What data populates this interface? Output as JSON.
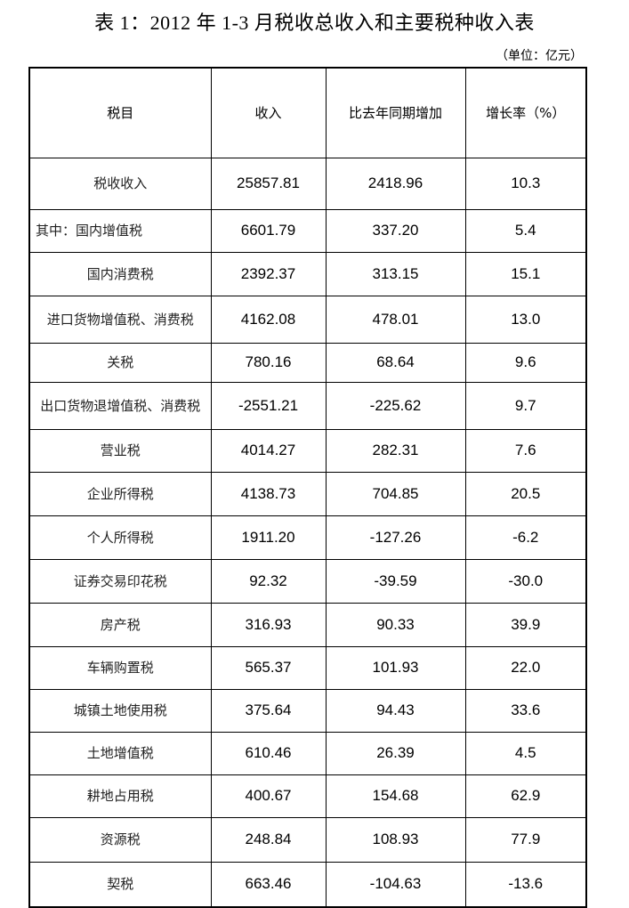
{
  "title": "表 1：2012 年 1-3 月税收总收入和主要税种收入表",
  "unit": "（单位：亿元）",
  "headers": [
    "税目",
    "收入",
    "比去年同期增加",
    "增长率（%）"
  ],
  "rows": [
    {
      "name": "税收收入",
      "income": "25857.81",
      "increase": "2418.96",
      "growth": "10.3"
    },
    {
      "name": "其中：国内增值税",
      "income": "6601.79",
      "increase": "337.20",
      "growth": "5.4"
    },
    {
      "name": "国内消费税",
      "income": "2392.37",
      "increase": "313.15",
      "growth": "15.1"
    },
    {
      "name": "进口货物增值税、消费税",
      "income": "4162.08",
      "increase": "478.01",
      "growth": "13.0"
    },
    {
      "name": "关税",
      "income": "780.16",
      "increase": "68.64",
      "growth": "9.6"
    },
    {
      "name": "出口货物退增值税、消费税",
      "income": "-2551.21",
      "increase": "-225.62",
      "growth": "9.7"
    },
    {
      "name": "营业税",
      "income": "4014.27",
      "increase": "282.31",
      "growth": "7.6"
    },
    {
      "name": "企业所得税",
      "income": "4138.73",
      "increase": "704.85",
      "growth": "20.5"
    },
    {
      "name": "个人所得税",
      "income": "1911.20",
      "increase": "-127.26",
      "growth": "-6.2"
    },
    {
      "name": "证券交易印花税",
      "income": "92.32",
      "increase": "-39.59",
      "growth": "-30.0"
    },
    {
      "name": "房产税",
      "income": "316.93",
      "increase": "90.33",
      "growth": "39.9"
    },
    {
      "name": "车辆购置税",
      "income": "565.37",
      "increase": "101.93",
      "growth": "22.0"
    },
    {
      "name": "城镇土地使用税",
      "income": "375.64",
      "increase": "94.43",
      "growth": "33.6"
    },
    {
      "name": "土地增值税",
      "income": "610.46",
      "increase": "26.39",
      "growth": "4.5"
    },
    {
      "name": "耕地占用税",
      "income": "400.67",
      "increase": "154.68",
      "growth": "62.9"
    },
    {
      "name": "资源税",
      "income": "248.84",
      "increase": "108.93",
      "growth": "77.9"
    },
    {
      "name": "契税",
      "income": "663.46",
      "increase": "-104.63",
      "growth": "-13.6"
    }
  ]
}
